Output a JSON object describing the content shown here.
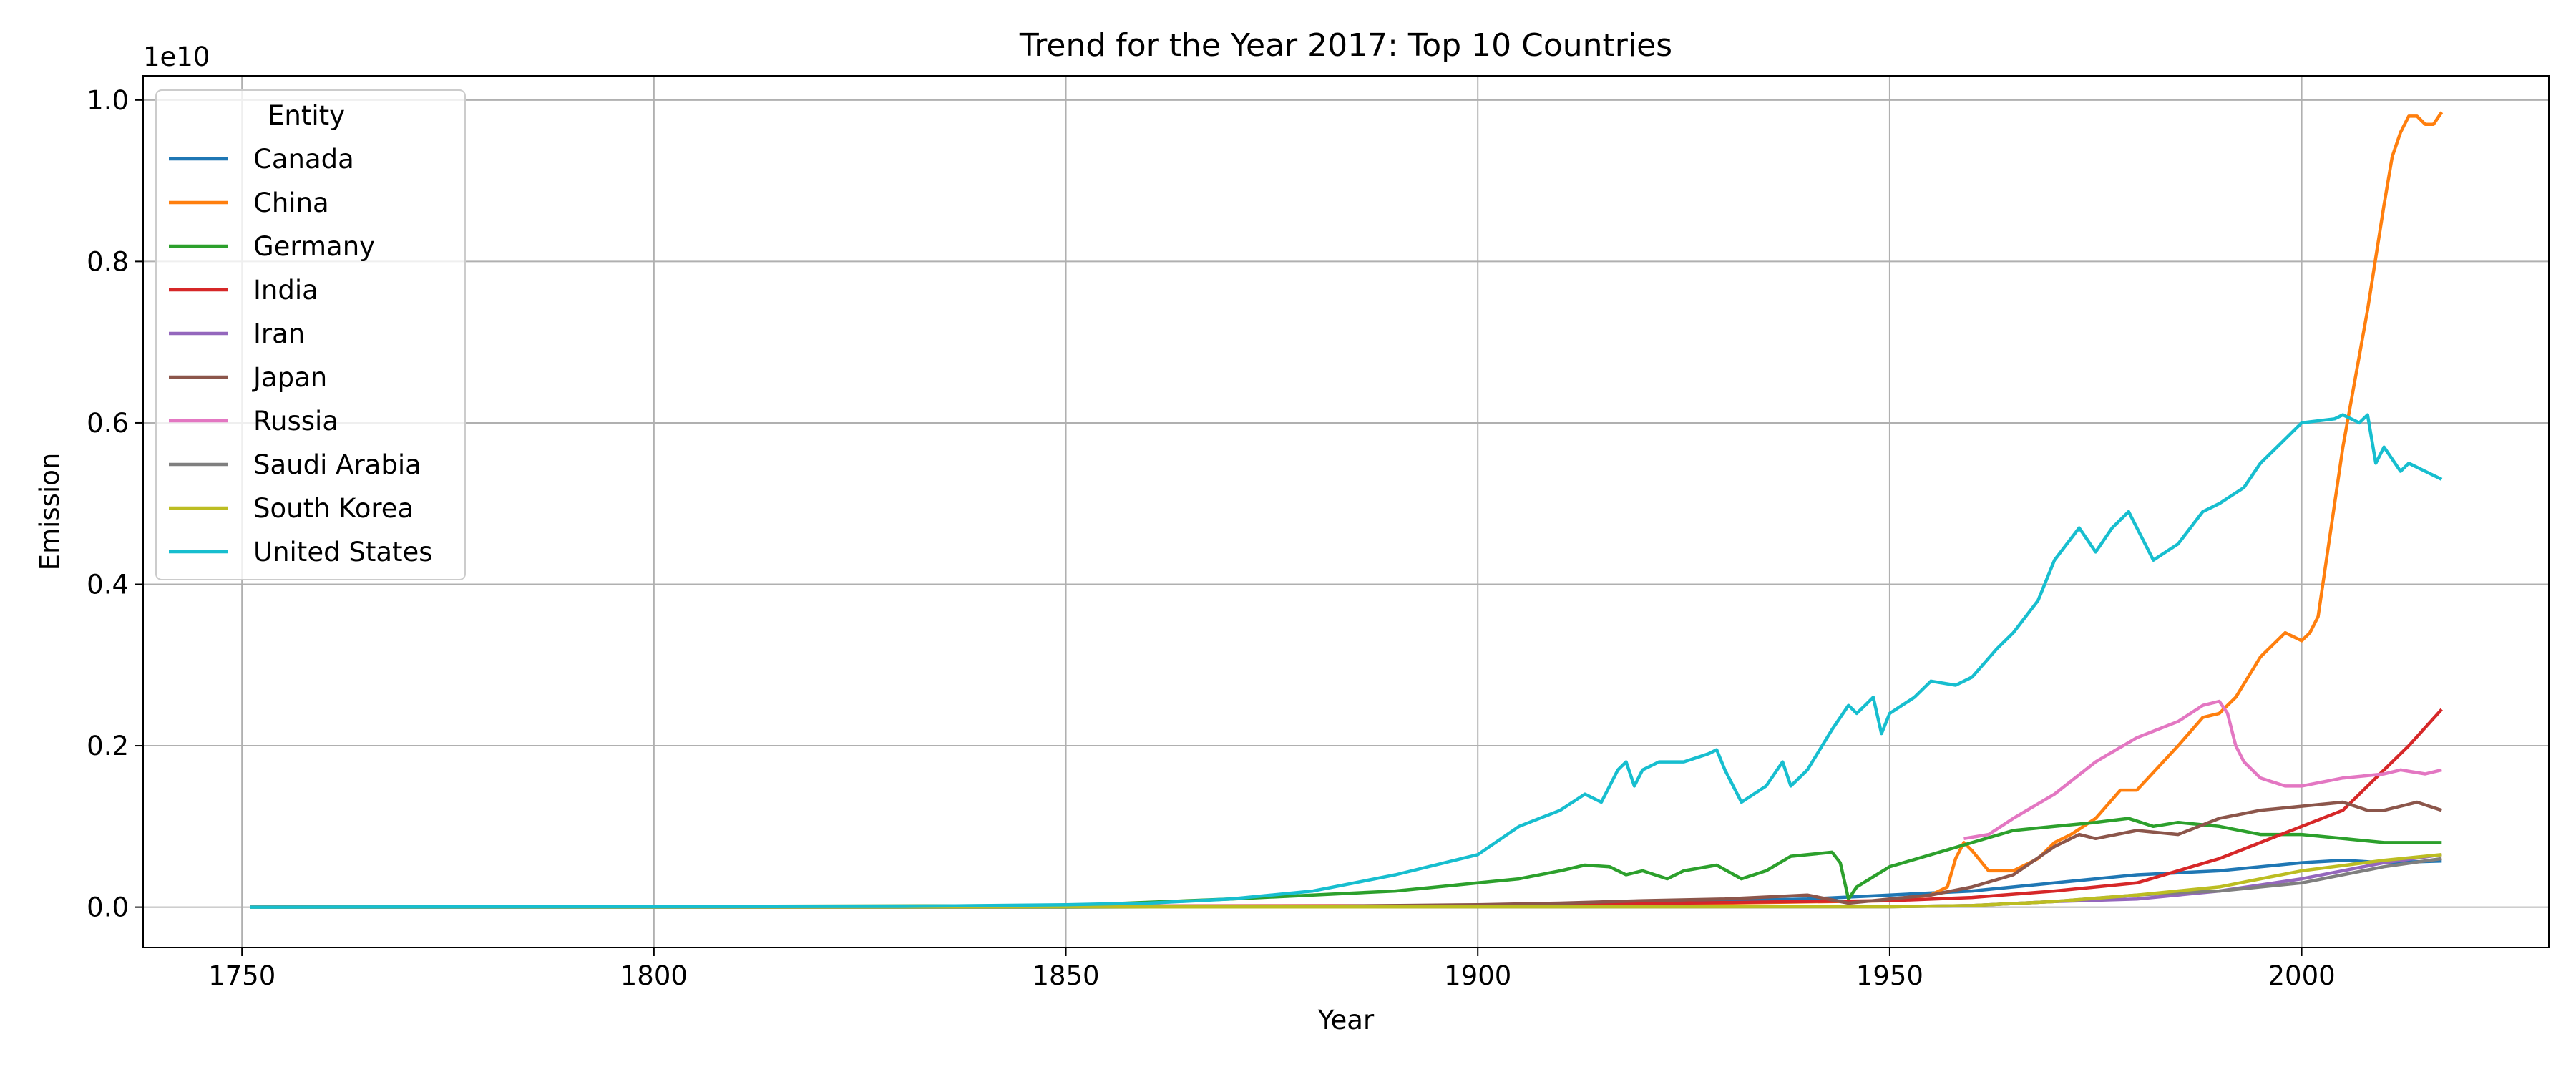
{
  "chart_data": {
    "type": "line",
    "title": "Trend for the Year 2017: Top 10 Countries",
    "xlabel": "Year",
    "ylabel": "Emission",
    "y_offset_label": "1e10",
    "y_scale_factor": 10000000000,
    "xlim": [
      1738,
      2030
    ],
    "ylim": [
      -0.05,
      1.03
    ],
    "xticks": [
      1750,
      1800,
      1850,
      1900,
      1950,
      2000
    ],
    "yticks": [
      0.0,
      0.2,
      0.4,
      0.6,
      0.8,
      1.0
    ],
    "xtick_labels": [
      "1750",
      "1800",
      "1850",
      "1900",
      "1950",
      "2000"
    ],
    "ytick_labels": [
      "0.0",
      "0.2",
      "0.4",
      "0.6",
      "0.8",
      "1.0"
    ],
    "grid": true,
    "legend": {
      "title": "Entity",
      "placement": "top-left"
    },
    "series": [
      {
        "name": "Canada",
        "color": "#1f77b4",
        "x": [
          1751,
          1850,
          1870,
          1900,
          1920,
          1940,
          1950,
          1960,
          1970,
          1980,
          1990,
          2000,
          2005,
          2010,
          2017
        ],
        "y": [
          0,
          0,
          0.0005,
          0.002,
          0.006,
          0.01,
          0.015,
          0.02,
          0.03,
          0.04,
          0.045,
          0.055,
          0.058,
          0.055,
          0.057
        ]
      },
      {
        "name": "China",
        "color": "#ff7f0e",
        "x": [
          1751,
          1900,
          1950,
          1955,
          1957,
          1958,
          1959,
          1960,
          1962,
          1965,
          1968,
          1970,
          1972,
          1975,
          1978,
          1980,
          1985,
          1988,
          1990,
          1992,
          1995,
          1998,
          2000,
          2001,
          2002,
          2005,
          2008,
          2010,
          2011,
          2012,
          2013,
          2014,
          2015,
          2016,
          2017
        ],
        "y": [
          0,
          0.0005,
          0.008,
          0.015,
          0.025,
          0.06,
          0.08,
          0.07,
          0.045,
          0.045,
          0.06,
          0.08,
          0.09,
          0.11,
          0.145,
          0.145,
          0.2,
          0.235,
          0.24,
          0.26,
          0.31,
          0.34,
          0.33,
          0.34,
          0.36,
          0.57,
          0.74,
          0.87,
          0.93,
          0.96,
          0.98,
          0.98,
          0.97,
          0.97,
          0.985
        ]
      },
      {
        "name": "Germany",
        "color": "#2ca02c",
        "x": [
          1751,
          1850,
          1870,
          1880,
          1890,
          1900,
          1905,
          1910,
          1913,
          1916,
          1918,
          1920,
          1923,
          1925,
          1929,
          1932,
          1935,
          1938,
          1943,
          1944,
          1945,
          1946,
          1950,
          1955,
          1960,
          1965,
          1970,
          1975,
          1979,
          1982,
          1985,
          1990,
          1995,
          2000,
          2005,
          2010,
          2017
        ],
        "y": [
          0,
          0.002,
          0.01,
          0.015,
          0.02,
          0.03,
          0.035,
          0.045,
          0.052,
          0.05,
          0.04,
          0.045,
          0.035,
          0.045,
          0.052,
          0.035,
          0.045,
          0.063,
          0.068,
          0.055,
          0.01,
          0.025,
          0.05,
          0.065,
          0.08,
          0.095,
          0.1,
          0.105,
          0.11,
          0.1,
          0.105,
          0.1,
          0.09,
          0.09,
          0.085,
          0.08,
          0.08
        ]
      },
      {
        "name": "India",
        "color": "#d62728",
        "x": [
          1751,
          1900,
          1940,
          1950,
          1960,
          1970,
          1980,
          1990,
          2000,
          2005,
          2010,
          2013,
          2017
        ],
        "y": [
          0,
          0.002,
          0.007,
          0.008,
          0.012,
          0.02,
          0.03,
          0.06,
          0.1,
          0.12,
          0.17,
          0.2,
          0.245
        ]
      },
      {
        "name": "Iran",
        "color": "#9467bd",
        "x": [
          1751,
          1950,
          1960,
          1970,
          1980,
          1990,
          2000,
          2010,
          2017
        ],
        "y": [
          0,
          0.0005,
          0.002,
          0.007,
          0.01,
          0.02,
          0.035,
          0.055,
          0.065
        ]
      },
      {
        "name": "Japan",
        "color": "#8c564b",
        "x": [
          1751,
          1880,
          1900,
          1910,
          1920,
          1930,
          1940,
          1945,
          1950,
          1955,
          1960,
          1965,
          1970,
          1973,
          1975,
          1980,
          1985,
          1990,
          1995,
          2000,
          2005,
          2008,
          2010,
          2014,
          2017
        ],
        "y": [
          0,
          0.001,
          0.003,
          0.005,
          0.008,
          0.01,
          0.015,
          0.005,
          0.01,
          0.015,
          0.025,
          0.04,
          0.075,
          0.09,
          0.085,
          0.095,
          0.09,
          0.11,
          0.12,
          0.125,
          0.13,
          0.12,
          0.12,
          0.13,
          0.12
        ]
      },
      {
        "name": "Russia",
        "color": "#e377c2",
        "x": [
          1959,
          1962,
          1965,
          1970,
          1975,
          1980,
          1985,
          1988,
          1990,
          1991,
          1992,
          1993,
          1995,
          1998,
          2000,
          2005,
          2010,
          2012,
          2015,
          2017
        ],
        "y": [
          0.085,
          0.09,
          0.11,
          0.14,
          0.18,
          0.21,
          0.23,
          0.25,
          0.255,
          0.24,
          0.2,
          0.18,
          0.16,
          0.15,
          0.15,
          0.16,
          0.165,
          0.17,
          0.165,
          0.17
        ]
      },
      {
        "name": "Saudi Arabia",
        "color": "#7f7f7f",
        "x": [
          1751,
          1950,
          1960,
          1970,
          1980,
          1985,
          1990,
          2000,
          2010,
          2017
        ],
        "y": [
          0,
          0.0005,
          0.002,
          0.007,
          0.015,
          0.018,
          0.02,
          0.03,
          0.05,
          0.06
        ]
      },
      {
        "name": "South Korea",
        "color": "#bcbd22",
        "x": [
          1751,
          1950,
          1960,
          1970,
          1980,
          1990,
          2000,
          2010,
          2017
        ],
        "y": [
          0,
          0.0005,
          0.002,
          0.007,
          0.015,
          0.025,
          0.045,
          0.058,
          0.065
        ]
      },
      {
        "name": "United States",
        "color": "#17becf",
        "x": [
          1751,
          1800,
          1830,
          1850,
          1860,
          1870,
          1880,
          1890,
          1900,
          1905,
          1910,
          1913,
          1915,
          1917,
          1918,
          1919,
          1920,
          1922,
          1925,
          1928,
          1929,
          1930,
          1932,
          1935,
          1937,
          1938,
          1940,
          1943,
          1945,
          1946,
          1947,
          1948,
          1949,
          1950,
          1953,
          1955,
          1958,
          1960,
          1963,
          1965,
          1968,
          1970,
          1973,
          1975,
          1977,
          1979,
          1980,
          1982,
          1985,
          1988,
          1990,
          1993,
          1995,
          1998,
          2000,
          2004,
          2005,
          2007,
          2008,
          2009,
          2010,
          2012,
          2013,
          2015,
          2017
        ],
        "y": [
          0,
          0.0005,
          0.001,
          0.003,
          0.005,
          0.01,
          0.02,
          0.04,
          0.065,
          0.1,
          0.12,
          0.14,
          0.13,
          0.17,
          0.18,
          0.15,
          0.17,
          0.18,
          0.18,
          0.19,
          0.195,
          0.17,
          0.13,
          0.15,
          0.18,
          0.15,
          0.17,
          0.22,
          0.25,
          0.24,
          0.25,
          0.26,
          0.215,
          0.24,
          0.26,
          0.28,
          0.275,
          0.285,
          0.32,
          0.34,
          0.38,
          0.43,
          0.47,
          0.44,
          0.47,
          0.49,
          0.47,
          0.43,
          0.45,
          0.49,
          0.5,
          0.52,
          0.55,
          0.58,
          0.6,
          0.605,
          0.61,
          0.6,
          0.61,
          0.55,
          0.57,
          0.54,
          0.55,
          0.54,
          0.53
        ]
      }
    ]
  }
}
